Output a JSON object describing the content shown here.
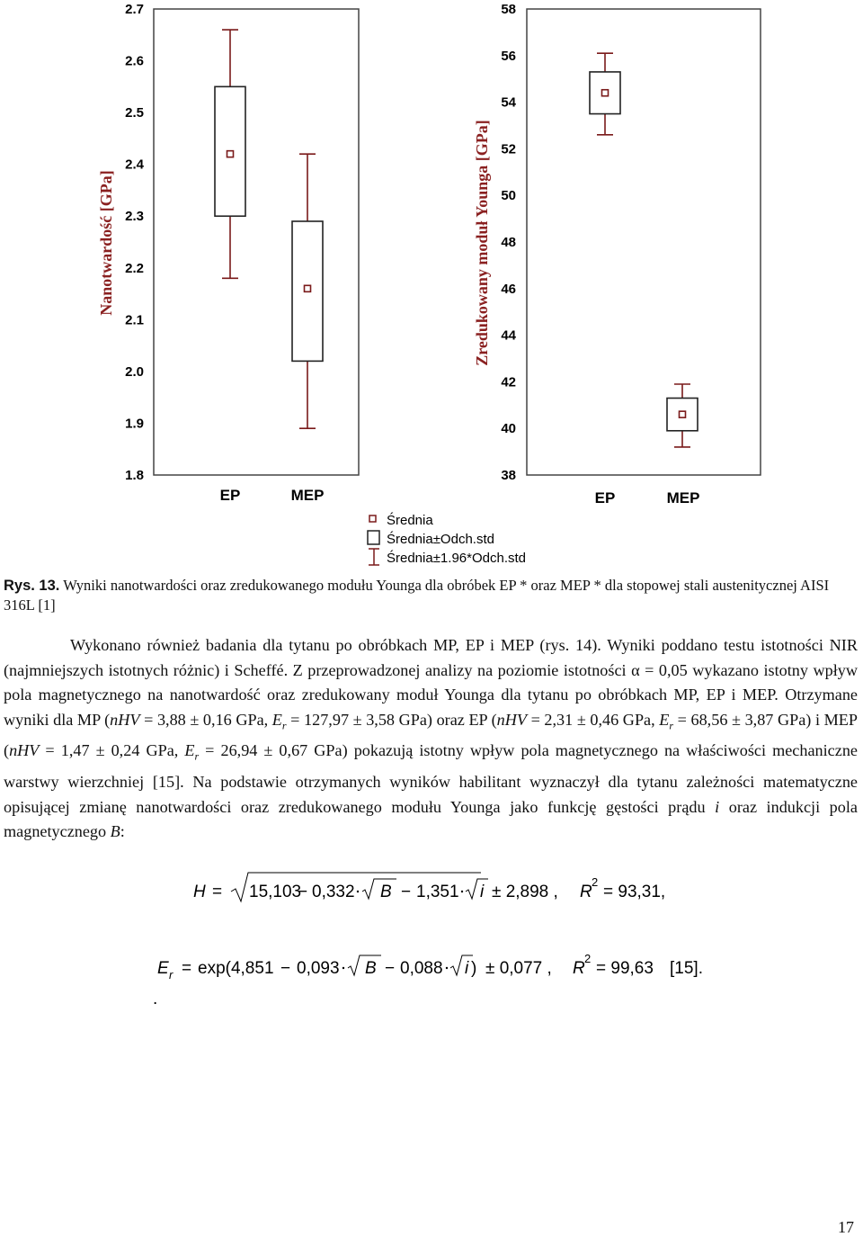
{
  "chart_data": [
    {
      "type": "box",
      "categories": [
        "EP",
        "MEP"
      ],
      "ylabel": "Nanotwardość [GPa]",
      "ylim": [
        1.8,
        2.7
      ],
      "yticks": [
        "2.7",
        "2.6",
        "2.5",
        "2.4",
        "2.3",
        "2.2",
        "2.1",
        "2.0",
        "1.9",
        "1.8"
      ],
      "series": [
        {
          "category": "EP",
          "mean": 2.42,
          "box_low": 2.3,
          "box_high": 2.55,
          "whisker_low": 2.18,
          "whisker_high": 2.66
        },
        {
          "category": "MEP",
          "mean": 2.16,
          "box_low": 2.02,
          "box_high": 2.29,
          "whisker_low": 1.89,
          "whisker_high": 2.42
        }
      ]
    },
    {
      "type": "box",
      "categories": [
        "EP",
        "MEP"
      ],
      "ylabel": "Zredukowany moduł Younga [GPa]",
      "ylim": [
        38,
        58
      ],
      "yticks": [
        "58",
        "56",
        "54",
        "52",
        "50",
        "48",
        "46",
        "44",
        "42",
        "40",
        "38"
      ],
      "series": [
        {
          "category": "EP",
          "mean": 54.4,
          "box_low": 53.5,
          "box_high": 55.3,
          "whisker_low": 52.6,
          "whisker_high": 56.1
        },
        {
          "category": "MEP",
          "mean": 40.6,
          "box_low": 39.9,
          "box_high": 41.3,
          "whisker_low": 39.2,
          "whisker_high": 41.9
        }
      ]
    }
  ],
  "legend": [
    "Średnia",
    "Średnia±Odch.std",
    "Średnia±1.96*Odch.std"
  ],
  "colors": {
    "marks": "#7a1a1a",
    "ylabel": "#8a2020"
  },
  "caption": {
    "label": "Rys. 13.",
    "text": " Wyniki nanotwardości oraz  zredukowanego modułu Younga dla obróbek  EP * oraz  MEP * dla stopowej stali austenitycznej AISI 316L [1]"
  },
  "paragraph": {
    "s1": "Wykonano również badania dla tytanu po obróbkach MP, EP i MEP (rys. 14). Wyniki poddano testu istotności NIR (najmniejszych istotnych różnic) i Scheffé. Z przeprowadzonej analizy na poziomie istotności α = 0,05 wykazano istotny wpływ pola magnetycznego na nanotwardość oraz zredukowany moduł Younga dla tytanu po obróbkach MP, EP i MEP. Otrzymane wyniki dla MP (",
    "nhv": "nHV",
    "s2": " = 3,88 ± 0,16 GPa, ",
    "er": "E",
    "r": "r",
    "s3": " = 127,97 ± 3,58 GPa) oraz EP (",
    "s4": " = 2,31 ± 0,46 GPa, ",
    "s5": " = 68,56 ± 3,87 GPa) i MEP (",
    "s6": " = 1,47 ± 0,24 GPa, ",
    "s7": " = 26,94 ± 0,67 GPa) pokazują istotny wpływ pola magnetycznego na właściwości mechaniczne warstwy wierzchniej [15]. Na podstawie otrzymanych wyników habilitant wyznaczył dla tytanu zależności matematyczne opisującej zmianę nanotwardości oraz zredukowanego modułu Younga jako funkcję gęstości prądu ",
    "i": "i",
    "s8": " oraz indukcji pola magnetycznego ",
    "b": "B",
    "s9": ":"
  },
  "equation1": {
    "lhs": "H",
    "eq": "=",
    "c1": "15,103",
    "minus": "−",
    "c2": "0,332",
    "var1": "B",
    "c3": "1,351",
    "var2": "i",
    "pm": "± 2,898 ,",
    "r": "R",
    "sup": "2",
    "rhs": "= 93,31,"
  },
  "equation2": {
    "lhs": "E",
    "sub": "r",
    "eq": "=",
    "exp": "exp(4,851",
    "c2": "0,093",
    "var1": "B",
    "c3": "0,088",
    "var2": "i",
    "close": ")",
    "pm": "± 0,077 ,",
    "r": "R",
    "sup": "2",
    "rhs": "= 99,63",
    "ref": "[15].",
    "dot": "."
  },
  "page_number": "17"
}
